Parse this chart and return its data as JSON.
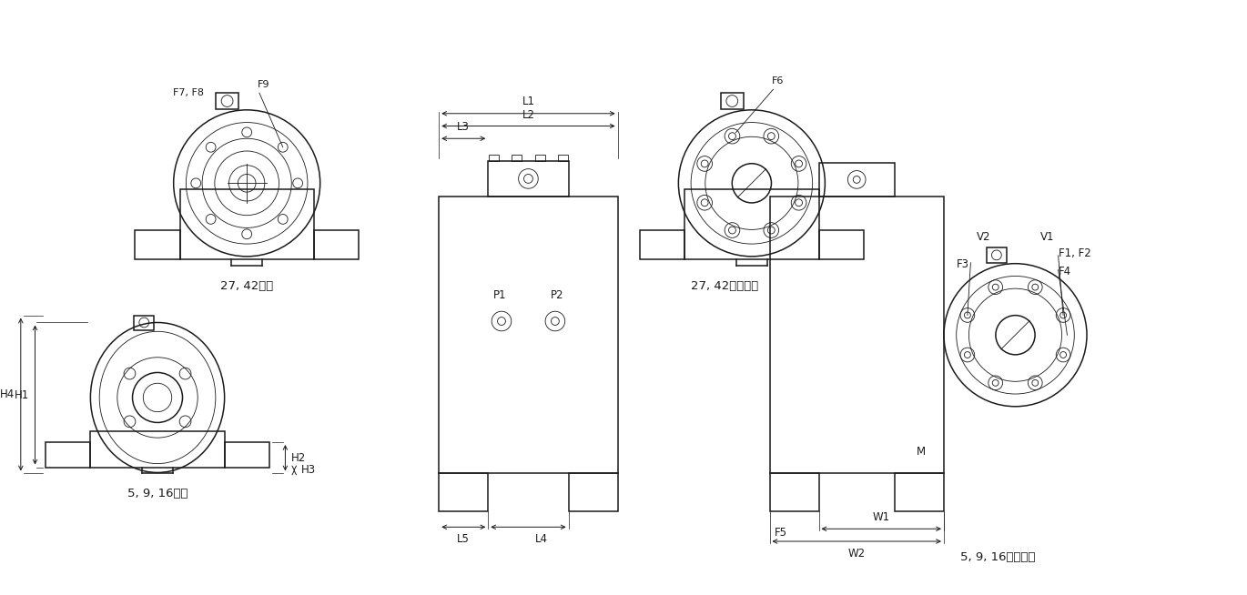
{
  "bg_color": "#ffffff",
  "lc": "#1a1a1a",
  "lw": 1.1,
  "tlw": 0.6,
  "captions": {
    "tl": "27, 42端盖",
    "tr": "27, 42输出法兰",
    "bl": "5, 9, 16端盖",
    "br": "5, 9, 16输出法兰"
  }
}
